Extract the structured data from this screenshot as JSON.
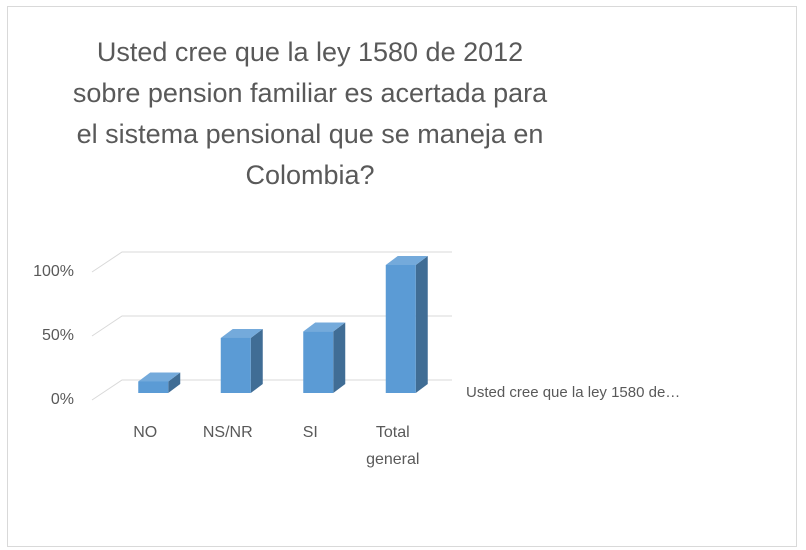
{
  "chart_data": {
    "type": "bar3d",
    "title": "Usted cree que la ley 1580 de 2012 sobre pension familiar es acertada para el sistema pensional que se maneja en Colombia?",
    "categories": [
      "NO",
      "NS/NR",
      "SI",
      "Total general"
    ],
    "series": [
      {
        "name": "Usted cree que la ley 1580 de…",
        "color": "#5b9bd5",
        "values": [
          9,
          43,
          48,
          100
        ]
      }
    ],
    "ylim": [
      0,
      100
    ],
    "yticks": [
      {
        "value": 0,
        "label": "0%"
      },
      {
        "value": 50,
        "label": "50%"
      },
      {
        "value": 100,
        "label": "100%"
      }
    ],
    "grid": true,
    "legend": "right"
  }
}
